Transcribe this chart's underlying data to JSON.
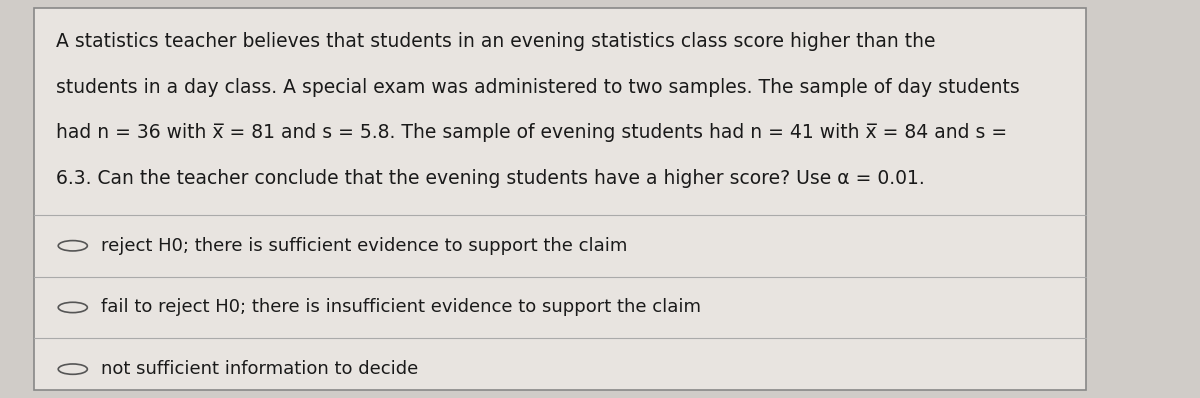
{
  "background_color": "#d0ccc8",
  "card_color": "#e8e4e0",
  "question_text_lines": [
    "A statistics teacher believes that students in an evening statistics class score higher than the",
    "students in a day class. A special exam was administered to two samples. The sample of day students",
    "had n = 36 with x̅ = 81 and s = 5.8. The sample of evening students had n = 41 with x̅ = 84 and s =",
    "6.3. Can the teacher conclude that the evening students have a higher score? Use α = 0.01."
  ],
  "options": [
    "reject H0; there is sufficient evidence to support the claim",
    "fail to reject H0; there is insufficient evidence to support the claim",
    "not sufficient information to decide"
  ],
  "font_size_question": 13.5,
  "font_size_options": 13.0,
  "text_color": "#1a1a1a",
  "line_color": "#aaaaaa",
  "circle_color": "#555555",
  "card_edge_color": "#888888"
}
